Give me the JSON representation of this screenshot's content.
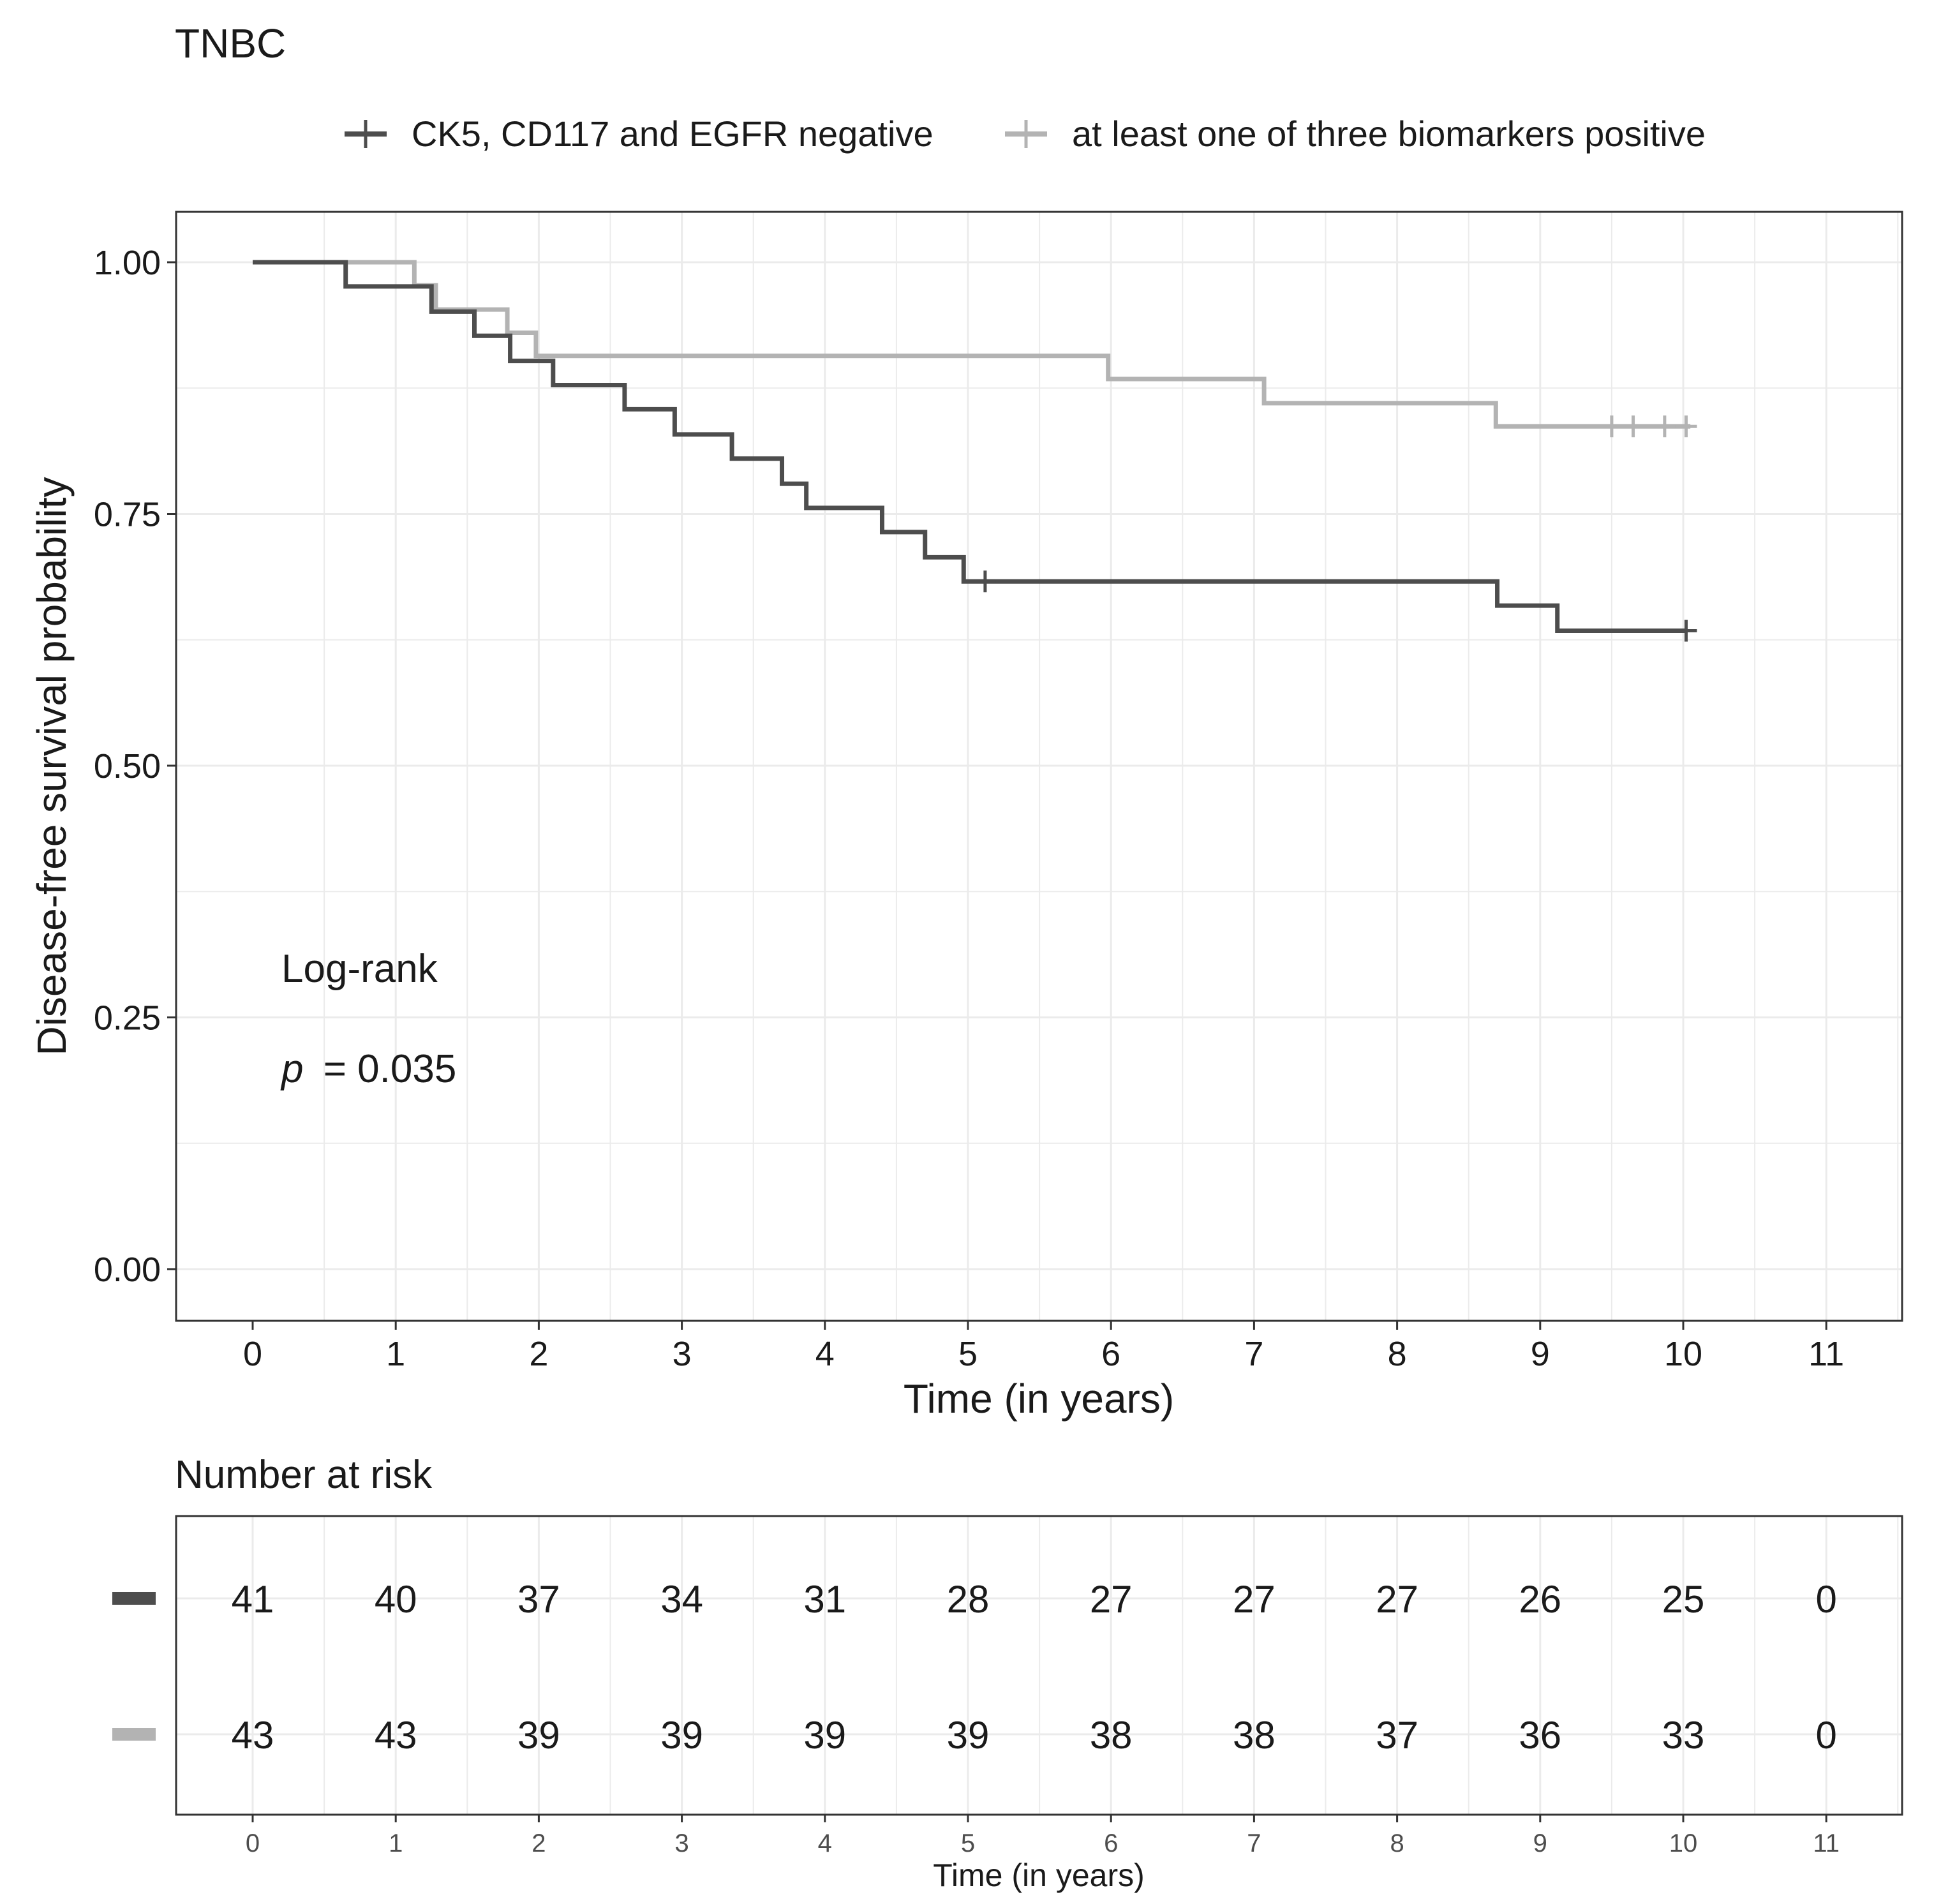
{
  "chart_data": [
    {
      "type": "line",
      "subtype": "kaplan-meier",
      "title": "TNBC",
      "xlabel": "Time (in years)",
      "ylabel": "Disease-free survival probability",
      "xlim": [
        0,
        11
      ],
      "ylim": [
        0,
        1
      ],
      "x_ticks": [
        0,
        1,
        2,
        3,
        4,
        5,
        6,
        7,
        8,
        9,
        10,
        11
      ],
      "y_ticks": [
        "0.00",
        "0.25",
        "0.50",
        "0.75",
        "1.00"
      ],
      "grid": true,
      "legend_position": "top",
      "annotation": {
        "test": "Log-rank",
        "p_symbol": "p",
        "p_value": "= 0.035"
      },
      "series": [
        {
          "name": "CK5, CD117 and EGFR negative",
          "color": "#4d4d4d",
          "steps": [
            [
              0,
              1.0
            ],
            [
              0.65,
              0.976
            ],
            [
              1.25,
              0.951
            ],
            [
              1.55,
              0.927
            ],
            [
              1.8,
              0.902
            ],
            [
              2.1,
              0.878
            ],
            [
              2.6,
              0.854
            ],
            [
              2.95,
              0.829
            ],
            [
              3.35,
              0.805
            ],
            [
              3.7,
              0.78
            ],
            [
              3.87,
              0.756
            ],
            [
              4.4,
              0.732
            ],
            [
              4.7,
              0.707
            ],
            [
              4.97,
              0.683
            ],
            [
              8.7,
              0.659
            ],
            [
              9.12,
              0.634
            ],
            [
              10.02,
              0.634
            ]
          ],
          "censored": [
            5.12,
            10.02
          ]
        },
        {
          "name": "at least one of three biomarkers positive",
          "color": "#b3b3b3",
          "steps": [
            [
              0,
              1.0
            ],
            [
              1.13,
              0.977
            ],
            [
              1.28,
              0.953
            ],
            [
              1.78,
              0.93
            ],
            [
              1.98,
              0.907
            ],
            [
              5.98,
              0.884
            ],
            [
              7.07,
              0.86
            ],
            [
              8.69,
              0.837
            ],
            [
              10.05,
              0.837
            ]
          ],
          "censored": [
            9.5,
            9.65,
            9.87,
            10.02
          ]
        }
      ]
    },
    {
      "type": "table",
      "title": "Number at risk",
      "xlabel": "Time (in years)",
      "x_ticks": [
        0,
        1,
        2,
        3,
        4,
        5,
        6,
        7,
        8,
        9,
        10,
        11
      ],
      "rows": [
        {
          "series": "CK5, CD117 and EGFR negative",
          "color": "#4d4d4d",
          "values": [
            41,
            40,
            37,
            34,
            31,
            28,
            27,
            27,
            27,
            26,
            25,
            0
          ]
        },
        {
          "series": "at least one of three biomarkers positive",
          "color": "#b3b3b3",
          "values": [
            43,
            43,
            39,
            39,
            39,
            39,
            38,
            38,
            37,
            36,
            33,
            0
          ]
        }
      ]
    }
  ]
}
